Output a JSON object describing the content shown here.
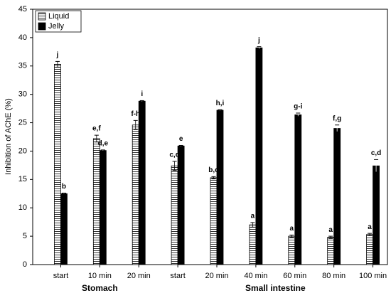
{
  "chart_data": {
    "type": "bar",
    "y_label": "Inhibition of AChE (%)",
    "categories": [
      "start",
      "10 min",
      "20 min",
      "start",
      "20 min",
      "40 min",
      "60 min",
      "80 min",
      "100 min"
    ],
    "groups": [
      {
        "name": "Stomach",
        "count": 3
      },
      {
        "name": "Small intestine",
        "count": 6
      }
    ],
    "series": [
      {
        "name": "Liquid",
        "color": "hatched",
        "values": [
          35.3,
          22.2,
          24.6,
          17.4,
          15.3,
          7.0,
          5.0,
          4.8,
          5.3
        ],
        "errors": [
          0.5,
          0.6,
          0.8,
          0.8,
          0.2,
          0.4,
          0.2,
          0.2,
          0.2
        ],
        "value_labels": [
          "j",
          "e,f",
          "f-h",
          "c,d",
          "b,c",
          "a",
          "a",
          "a",
          "a"
        ]
      },
      {
        "name": "Jelly",
        "color": "#000000",
        "values": [
          12.5,
          20.1,
          28.8,
          20.9,
          27.2,
          38.2,
          26.4,
          24.0,
          17.4
        ],
        "errors": [
          0.1,
          0.1,
          0.1,
          0.1,
          0.1,
          0.2,
          0.3,
          0.6,
          1.1
        ],
        "value_labels": [
          "b",
          "d,e",
          "i",
          "e",
          "h,i",
          "j",
          "g-i",
          "f,g",
          "c,d"
        ]
      }
    ],
    "ylim": [
      0,
      45
    ],
    "yticks": [
      0,
      5,
      10,
      15,
      20,
      25,
      30,
      35,
      40,
      45
    ],
    "legend": "upper left"
  }
}
